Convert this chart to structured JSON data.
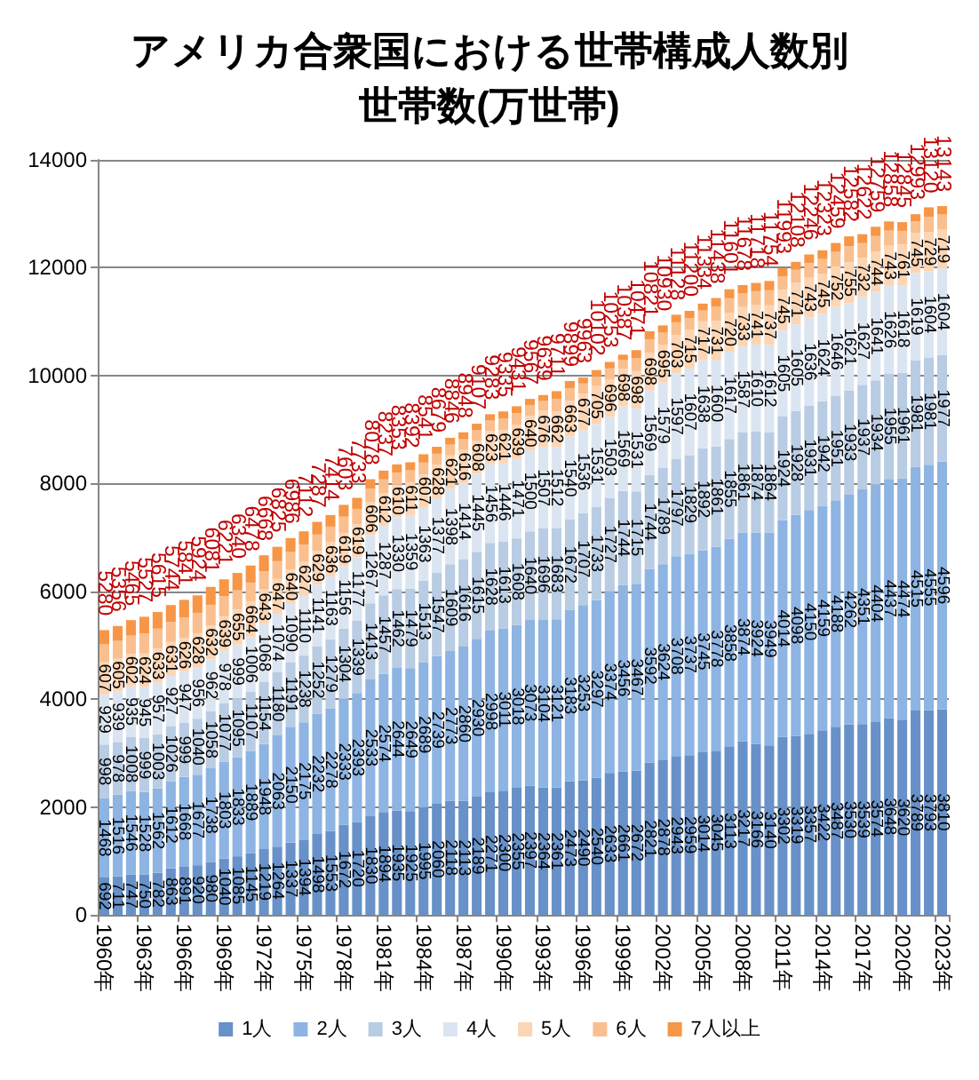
{
  "chart_data": {
    "type": "bar",
    "title": "アメリカ合衆国における世帯構成人数別世帯数(万世帯)",
    "stacked": true,
    "grid": "y",
    "legend": "bottom",
    "ylim": [
      0,
      14000
    ],
    "yticks": [
      0,
      2000,
      4000,
      6000,
      8000,
      10000,
      12000,
      14000
    ],
    "categories": [
      "1960年",
      null,
      null,
      "1963年",
      null,
      null,
      "1966年",
      null,
      null,
      "1969年",
      null,
      null,
      "1972年",
      null,
      null,
      "1975年",
      null,
      null,
      "1978年",
      null,
      null,
      "1981年",
      null,
      null,
      "1984年",
      null,
      null,
      "1987年",
      null,
      null,
      "1990年",
      null,
      null,
      "1993年",
      null,
      null,
      "1996年",
      null,
      null,
      "1999年",
      null,
      null,
      "2002年",
      null,
      null,
      "2005年",
      null,
      null,
      "2008年",
      null,
      null,
      "2011年",
      null,
      null,
      "2014年",
      null,
      null,
      "2017年",
      null,
      null,
      "2020年",
      null,
      null,
      "2023年"
    ],
    "series": [
      {
        "name": "1人",
        "color": "#6791c8",
        "values": [
          692,
          711,
          747,
          750,
          782,
          863,
          891,
          920,
          980,
          1040,
          1085,
          1145,
          1219,
          1264,
          1337,
          1394,
          1498,
          1553,
          1672,
          1720,
          1830,
          1894,
          1935,
          1925,
          1995,
          2060,
          2118,
          2113,
          2189,
          2271,
          2300,
          2355,
          2397,
          2364,
          2361,
          2473,
          2490,
          2540,
          2633,
          2661,
          2672,
          2821,
          2878,
          2943,
          2959,
          3014,
          3045,
          3113,
          3217,
          3166,
          3140,
          3302,
          3319,
          3357,
          3422,
          3487,
          3530,
          3539,
          3574,
          3648,
          3620,
          3789,
          3793,
          3810
        ],
        "value_labels": [
          "692",
          "711",
          "747",
          "750",
          "782",
          "863",
          "891",
          "920",
          "980",
          "1040",
          "1085",
          "1145",
          "1219",
          "1264",
          "1337",
          "1394",
          "1498",
          "1553",
          "1672",
          "1720",
          "1830",
          "1894",
          "1935",
          "1925",
          "1995",
          "2060",
          "2118",
          "2113",
          "2189",
          "2271",
          "2300",
          "2355",
          "2397",
          "2364",
          "2361",
          "2473",
          "2490",
          "2540",
          "2633",
          "2661",
          "2672",
          "2821",
          "2878",
          "2943",
          "2959",
          "3014",
          "3045",
          "3113",
          "3217",
          "3166",
          "3140",
          "3302",
          "3319",
          "3357",
          "3422",
          "3487",
          "3530",
          "3539",
          "3574",
          "3648",
          "3620",
          "3789",
          "3793",
          "3810"
        ]
      },
      {
        "name": "2人",
        "color": "#8db4e2",
        "values": [
          1468,
          1516,
          1546,
          1528,
          1562,
          1612,
          1668,
          1677,
          1738,
          1803,
          1833,
          1889,
          1948,
          2063,
          2150,
          2175,
          2232,
          2278,
          2333,
          2393,
          2533,
          2574,
          2644,
          2649,
          2689,
          2739,
          2773,
          2860,
          2930,
          2998,
          3011,
          3018,
          3073,
          3104,
          3121,
          3183,
          3253,
          3297,
          3374,
          3456,
          3467,
          3592,
          3624,
          3708,
          3737,
          3745,
          3778,
          3858,
          3874,
          3924,
          3949,
          4014,
          4098,
          4150,
          4159,
          4188,
          4262,
          4351,
          4404,
          4437,
          4474,
          4515,
          4555,
          4596
        ],
        "value_labels": [
          "1468",
          "1516",
          "1546",
          "1528",
          "1562",
          "1612",
          "1668",
          "1677",
          "1738",
          "1803",
          "1833",
          "1889",
          "1948",
          "2063",
          "2150",
          "2175",
          "2232",
          "2278",
          "2333",
          "2393",
          "2533",
          "2574",
          "2644",
          "2649",
          "2689",
          "2739",
          "2773",
          "2860",
          "2930",
          "2998",
          "3011",
          "3018",
          "3073",
          "3104",
          "3121",
          "3183",
          "3253",
          "3297",
          "3374",
          "3456",
          "3467",
          "3592",
          "3624",
          "3708",
          "3737",
          "3745",
          "3778",
          "3858",
          "3874",
          "3924",
          "3949",
          "4014",
          "4098",
          "4150",
          "4159",
          "4188",
          "4262",
          "4351",
          "4404",
          "4437",
          "4474",
          "4515",
          "4555",
          "4596"
        ]
      },
      {
        "name": "3人",
        "color": "#b8cce4",
        "values": [
          998,
          978,
          1008,
          999,
          1003,
          1026,
          999,
          1040,
          1058,
          1077,
          1095,
          1107,
          1154,
          1180,
          1191,
          1238,
          1252,
          1279,
          1304,
          1339,
          1413,
          1457,
          1462,
          1479,
          1513,
          1547,
          1609,
          1616,
          1615,
          1628,
          1613,
          1608,
          1640,
          1696,
          1683,
          1672,
          1707,
          1733,
          1727,
          1744,
          1715,
          1744,
          1789,
          1797,
          1829,
          1892,
          1861,
          1855,
          1861,
          1874,
          1864,
          1924,
          1928,
          1931,
          1942,
          1951,
          1933,
          1937,
          1934,
          1955,
          1961,
          1981,
          1981,
          1977
        ],
        "value_labels": [
          "998",
          "978",
          "1008",
          "999",
          "1003",
          "1026",
          "999",
          "1040",
          "1058",
          "1077",
          "1095",
          "1107",
          "1154",
          "1180",
          "1191",
          "1238",
          "1252",
          "1279",
          "1304",
          "1339",
          "1413",
          "1457",
          "1462",
          "1479",
          "1513",
          "1547",
          "1609",
          "1616",
          "1615",
          "1628",
          "1613",
          "1608",
          "1640",
          "1696",
          "1683",
          "1672",
          "1707",
          "1733",
          "1727",
          "1744",
          "1715",
          "1744",
          "1789",
          "1797",
          "1829",
          "1892",
          "1861",
          "1855",
          "1861",
          "1874",
          "1864",
          "1924",
          "1928",
          "1931",
          "1942",
          "1951",
          "1933",
          "1937",
          "1934",
          "1955",
          "1961",
          "1981",
          "1981",
          "1977"
        ]
      },
      {
        "name": "4人",
        "color": "#dbe5f1",
        "values": [
          929,
          939,
          935,
          945,
          957,
          927,
          947,
          956,
          962,
          978,
          999,
          1006,
          1068,
          1074,
          1090,
          1110,
          1141,
          1163,
          1156,
          1177,
          1267,
          1287,
          1330,
          1359,
          1363,
          1377,
          1398,
          1414,
          1445,
          1456,
          1446,
          1471,
          1500,
          1507,
          1512,
          1540,
          1536,
          1531,
          1503,
          1569,
          1531,
          1569,
          1579,
          1597,
          1607,
          1638,
          1600,
          1617,
          1587,
          1610,
          1612,
          1605,
          1605,
          1636,
          1624,
          1646,
          1621,
          1627,
          1641,
          1626,
          1618,
          1619,
          1604,
          1604
        ],
        "value_labels": [
          "929",
          "939",
          "935",
          "945",
          "957",
          "927",
          "947",
          "956",
          "962",
          "978",
          "999",
          "1006",
          "1068",
          "1074",
          "1090",
          "1110",
          "1141",
          "1163",
          "1156",
          "1177",
          "1267",
          "1287",
          "1330",
          "1359",
          "1363",
          "1377",
          "1398",
          "1414",
          "1445",
          "1456",
          "1446",
          "1471",
          "1500",
          "1507",
          "1512",
          "1540",
          "1536",
          "1531",
          "1503",
          "1569",
          "1531",
          "1569",
          "1579",
          "1597",
          "1607",
          "1638",
          "1600",
          "1617",
          "1587",
          "1610",
          "1612",
          "1605",
          "1605",
          "1636",
          "1624",
          "1646",
          "1621",
          "1627",
          "1641",
          "1626",
          "1618",
          "1619",
          "1604",
          "1604"
        ]
      },
      {
        "name": "5人",
        "color": "#fcd5b4",
        "values": [
          607,
          605,
          602,
          624,
          633,
          631,
          626,
          628,
          632,
          639,
          655,
          664,
          643,
          647,
          640,
          627,
          629,
          636,
          619,
          619,
          606,
          612,
          610,
          611,
          607,
          628,
          621,
          616,
          608,
          623,
          621,
          639,
          640,
          676,
          662,
          663,
          677,
          705,
          696,
          698,
          698,
          698,
          695,
          703,
          715,
          717,
          731,
          720,
          733,
          741,
          737,
          745,
          771,
          743,
          745,
          752,
          755,
          732,
          744,
          743,
          761,
          745,
          729,
          719
        ],
        "value_labels": [
          "607",
          "605",
          "602",
          "624",
          "633",
          "631",
          "626",
          "628",
          "632",
          "639",
          "655",
          "664",
          "643",
          "647",
          "640",
          "627",
          "629",
          "636",
          "619",
          "619",
          "606",
          "612",
          "610",
          "611",
          "607",
          "628",
          "621",
          "616",
          "608",
          "623",
          "621",
          "639",
          "640",
          "676",
          "662",
          "663",
          "677",
          "705",
          "696",
          "698",
          "698",
          "698",
          "695",
          "703",
          "715",
          "717",
          "731",
          "720",
          "733",
          "741",
          "737",
          "745",
          "771",
          "743",
          "745",
          "752",
          "755",
          "732",
          "744",
          "743",
          "761",
          "745",
          "729",
          "719"
        ]
      },
      {
        "name": "6人",
        "color": "#fabf8f",
        "values": [
          320,
          330,
          340,
          370,
          370,
          370,
          380,
          380,
          380,
          370,
          350,
          350,
          340,
          330,
          320,
          320,
          300,
          290,
          300,
          280,
          250,
          250,
          220,
          220,
          220,
          200,
          200,
          200,
          200,
          190,
          210,
          210,
          200,
          180,
          230,
          230,
          190,
          180,
          200,
          160,
          240,
          250,
          230,
          240,
          220,
          200,
          260,
          270,
          250,
          250,
          280,
          250,
          240,
          270,
          270,
          270,
          300,
          270,
          290,
          280,
          250,
          210,
          280,
          280
        ]
      },
      {
        "name": "7人以上",
        "color": "#f79646",
        "values": [
          266,
          277,
          287,
          311,
          308,
          315,
          330,
          323,
          331,
          314,
          323,
          317,
          296,
          267,
          258,
          248,
          235,
          215,
          219,
          205,
          179,
          163,
          152,
          149,
          154,
          128,
          127,
          129,
          120,
          117,
          134,
          130,
          117,
          112,
          142,
          138,
          110,
          116,
          120,
          99,
          148,
          147,
          135,
          140,
          133,
          128,
          163,
          168,
          156,
          153,
          172,
          153,
          147,
          159,
          161,
          165,
          181,
          166,
          172,
          169,
          161,
          134,
          178,
          157
        ]
      }
    ],
    "totals": [
      "5280",
      "5356",
      "5465",
      "5527",
      "5615",
      "5744",
      "5841",
      "5924",
      "6081",
      "6221",
      "6340",
      "6478",
      "6668",
      "6825",
      "6986",
      "7112",
      "7287",
      "7414",
      "7603",
      "7733",
      "8078",
      "8237",
      "8353",
      "8392",
      "8541",
      "8679",
      "8846",
      "8948",
      "9107",
      "9283",
      "9335",
      "9431",
      "9567",
      "9639",
      "9711",
      "9899",
      "9963",
      "10102",
      "10253",
      "10387",
      "10471",
      "10821",
      "10930",
      "11128",
      "11200",
      "11334",
      "11438",
      "11601",
      "11678",
      "11718",
      "11754",
      "11993",
      "12108",
      "12246",
      "12323",
      "12459",
      "12582",
      "12622",
      "12759",
      "12858",
      "12845",
      "12993",
      "13120",
      "13143"
    ]
  }
}
